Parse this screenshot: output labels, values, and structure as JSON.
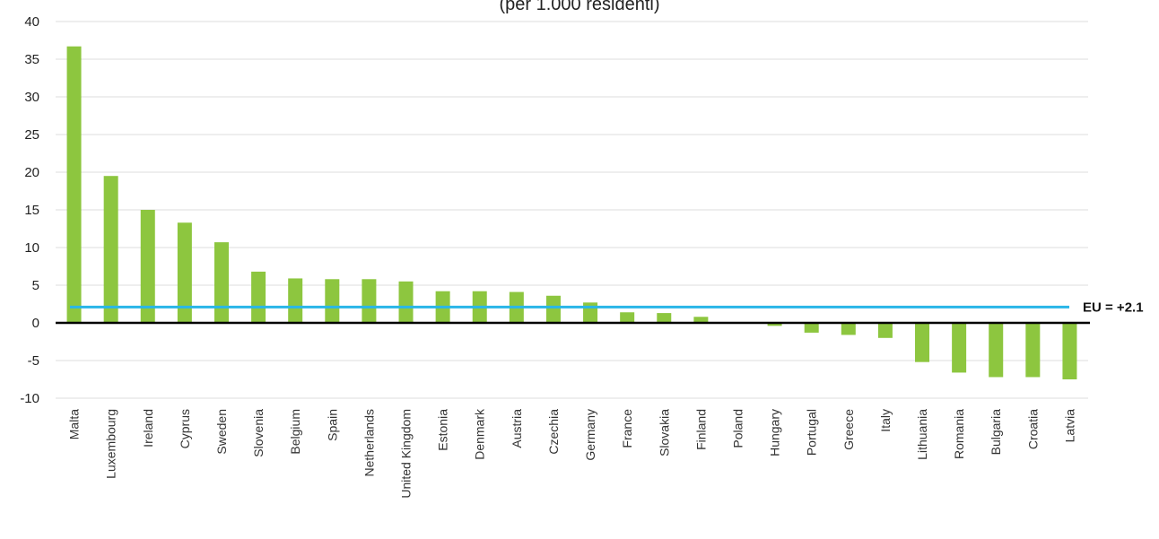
{
  "chart_data": {
    "type": "bar",
    "title": "",
    "subtitle": "(per 1.000 residenti)",
    "xlabel": "",
    "ylabel": "",
    "ylim": [
      -10,
      40
    ],
    "yticks": [
      40,
      35,
      30,
      25,
      20,
      15,
      10,
      5,
      0,
      -5,
      -10
    ],
    "grid": true,
    "categories": [
      "Malta",
      "Luxembourg",
      "Ireland",
      "Cyprus",
      "Sweden",
      "Slovenia",
      "Belgium",
      "Spain",
      "Netherlands",
      "United Kingdom",
      "Estonia",
      "Denmark",
      "Austria",
      "Czechia",
      "Germany",
      "France",
      "Slovakia",
      "Finland",
      "Poland",
      "Hungary",
      "Portugal",
      "Greece",
      "Italy",
      "Lithuania",
      "Romania",
      "Bulgaria",
      "Croatia",
      "Latvia"
    ],
    "values": [
      36.7,
      19.5,
      15.0,
      13.3,
      10.7,
      6.8,
      5.9,
      5.8,
      5.8,
      5.5,
      4.2,
      4.2,
      4.1,
      3.6,
      2.7,
      1.4,
      1.3,
      0.8,
      0.0,
      -0.4,
      -1.3,
      -1.6,
      -2.0,
      -5.2,
      -6.6,
      -7.2,
      -7.2,
      -7.5
    ],
    "bar_color": "#8dc63f",
    "reference_line": {
      "value": 2.1,
      "label": "EU = +2.1",
      "color": "#29b6e8"
    },
    "zero_line_color": "#000000"
  }
}
